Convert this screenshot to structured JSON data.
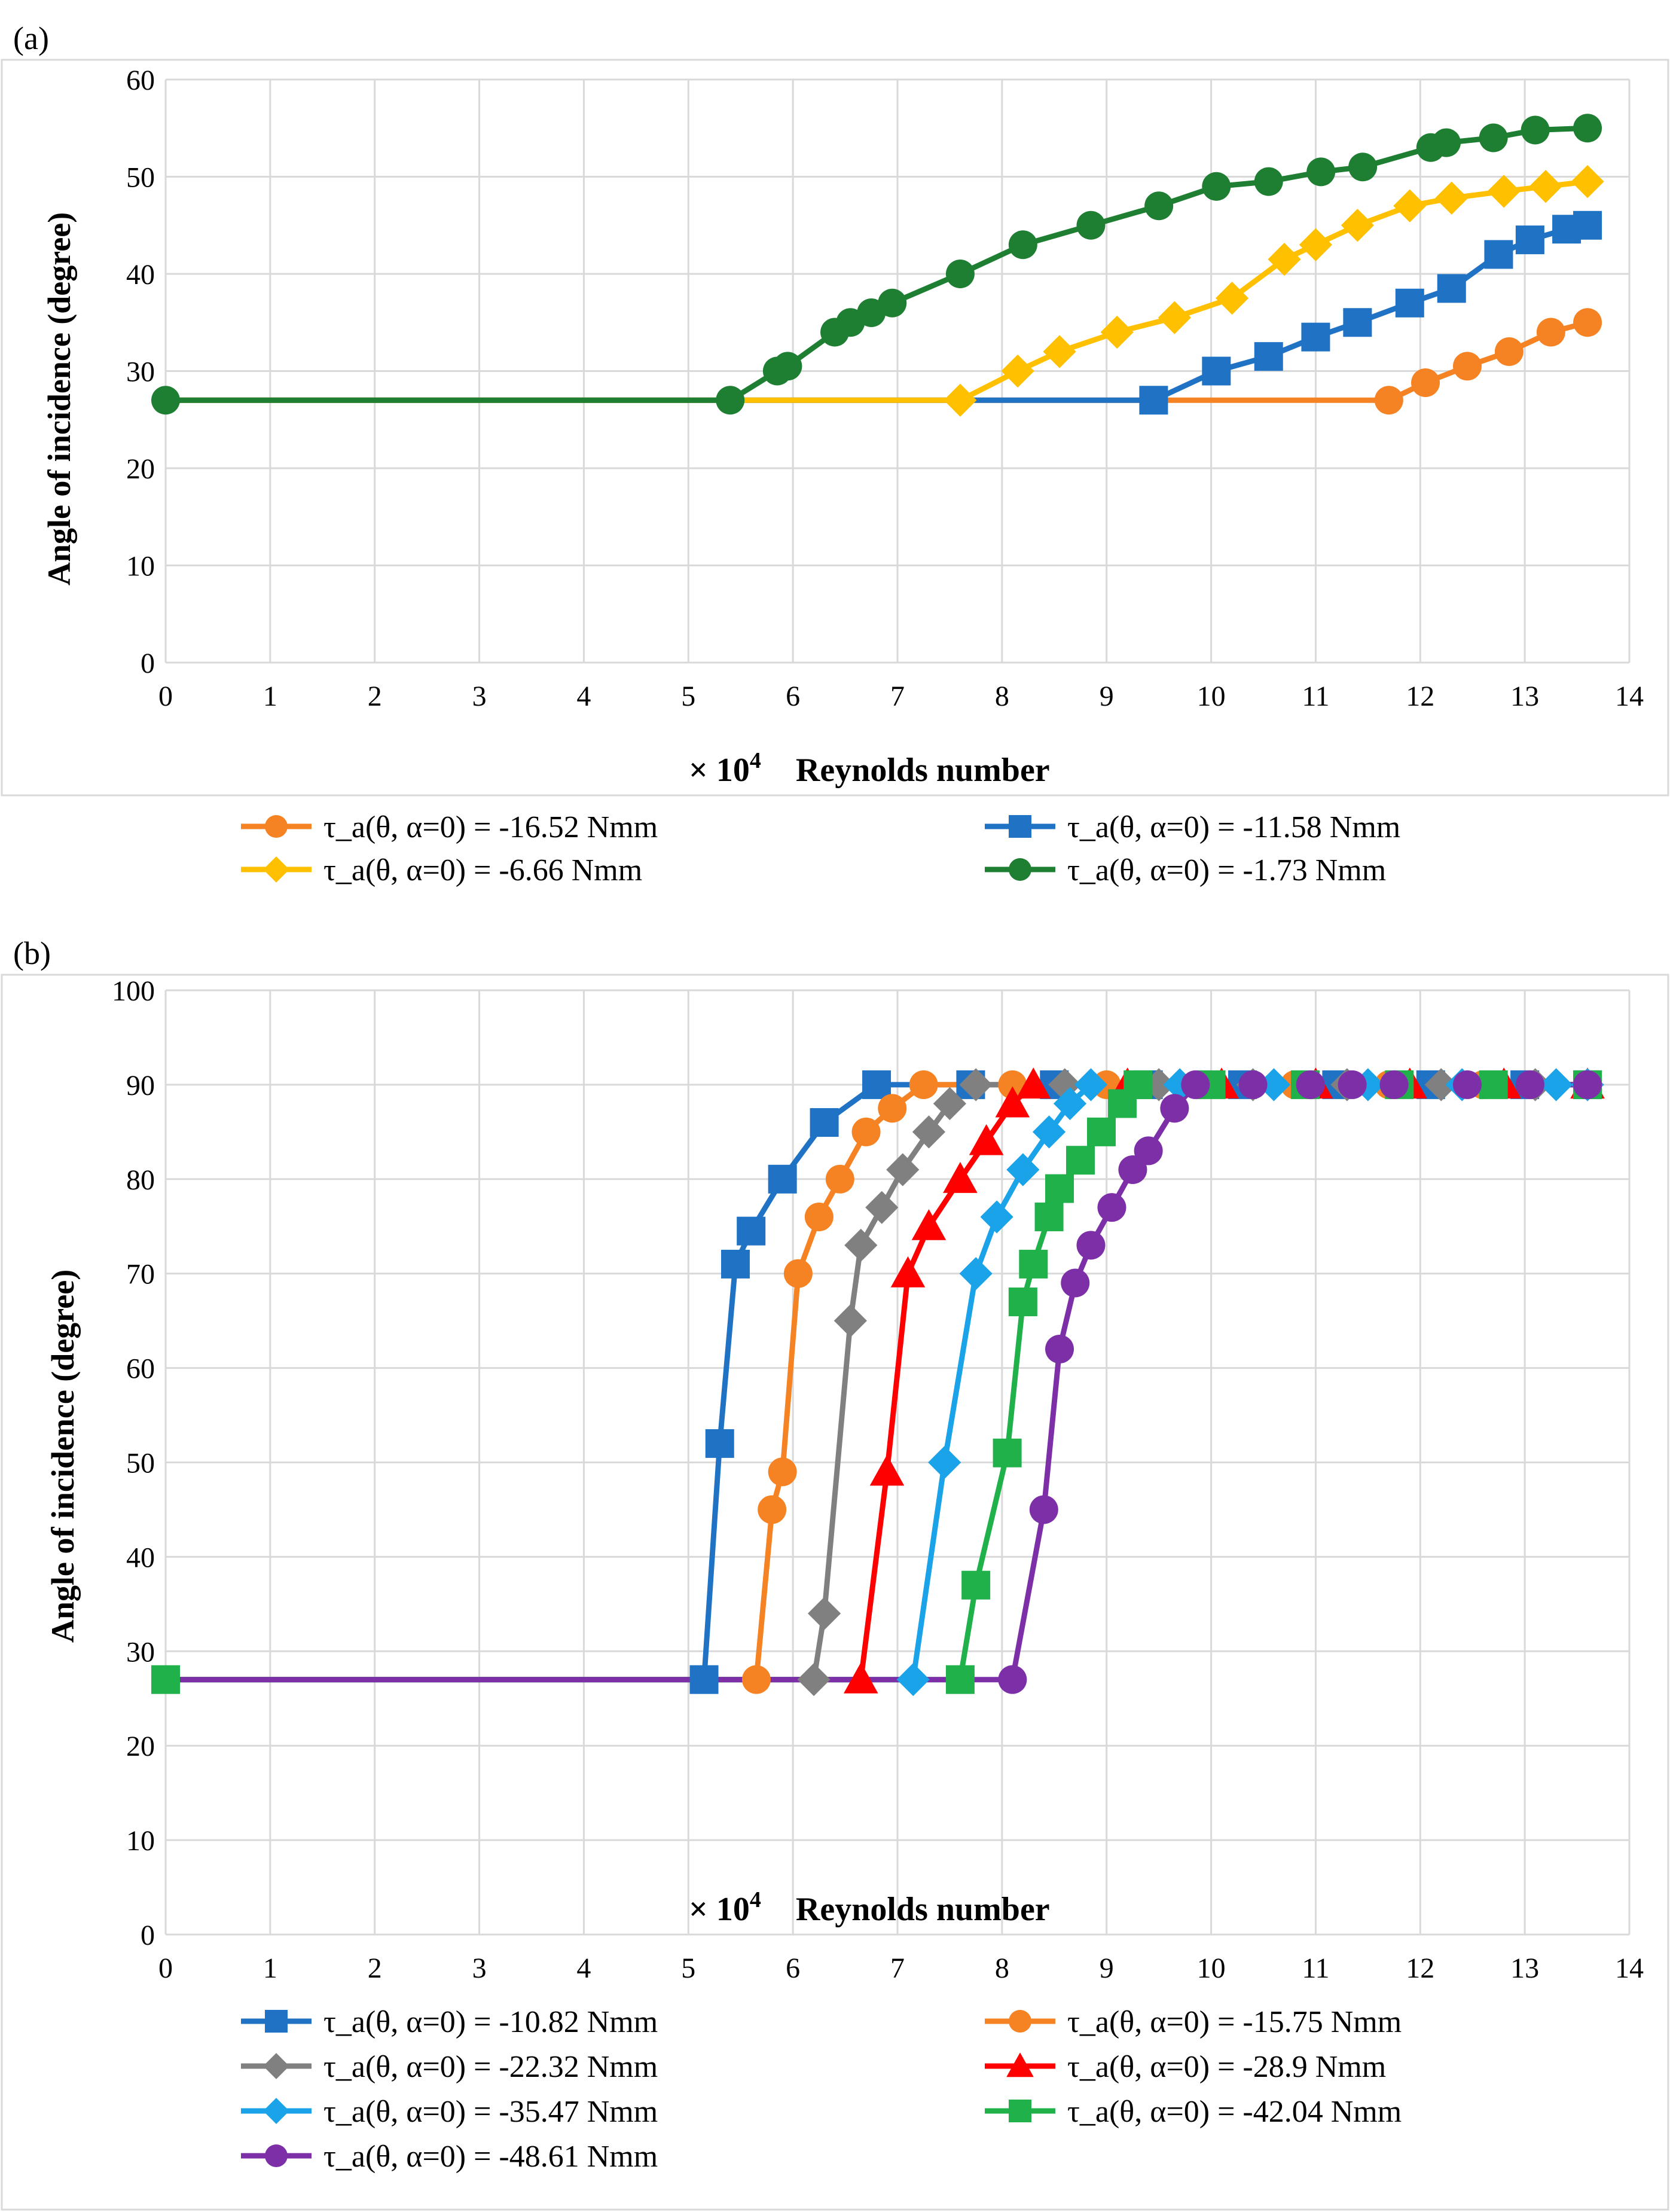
{
  "chart_data": [
    {
      "panel_label": "(a)",
      "type": "line",
      "title": "",
      "xlabel_prefix": "× 10",
      "xlabel_exponent": "4",
      "xlabel": "Reynolds number",
      "ylabel": "Angle of incidence (degree)",
      "xlim": [
        0,
        14
      ],
      "ylim": [
        0,
        60
      ],
      "xticks": [
        "0",
        "1",
        "2",
        "3",
        "4",
        "5",
        "6",
        "7",
        "8",
        "9",
        "10",
        "11",
        "12",
        "13",
        "14"
      ],
      "yticks": [
        "0",
        "10",
        "20",
        "30",
        "40",
        "50",
        "60"
      ],
      "grid": true,
      "legend_position": "bottom",
      "series": [
        {
          "name": "τ_a(θ, α=0) = -16.52 Nmm",
          "color": "#F58223",
          "marker": "circle",
          "points": [
            [
              0,
              27
            ],
            [
              11.7,
              27
            ],
            [
              12.05,
              28.8
            ],
            [
              12.45,
              30.5
            ],
            [
              12.85,
              32
            ],
            [
              13.25,
              34
            ],
            [
              13.6,
              35
            ]
          ],
          "marker_start": 1
        },
        {
          "name": "τ_a(θ, α=0) = -11.58 Nmm",
          "color": "#1F72C4",
          "marker": "square",
          "points": [
            [
              0,
              27
            ],
            [
              9.45,
              27
            ],
            [
              10.05,
              30
            ],
            [
              10.55,
              31.5
            ],
            [
              11.0,
              33.5
            ],
            [
              11.4,
              35
            ],
            [
              11.9,
              37
            ],
            [
              12.3,
              38.5
            ],
            [
              12.75,
              42
            ],
            [
              13.05,
              43.5
            ],
            [
              13.4,
              44.6
            ],
            [
              13.6,
              45
            ]
          ],
          "marker_start": 1
        },
        {
          "name": "τ_a(θ, α=0) = -6.66 Nmm",
          "color": "#FFC000",
          "marker": "diamond",
          "points": [
            [
              0,
              27
            ],
            [
              7.6,
              27
            ],
            [
              8.15,
              30
            ],
            [
              8.55,
              32
            ],
            [
              9.1,
              34
            ],
            [
              9.65,
              35.5
            ],
            [
              10.2,
              37.5
            ],
            [
              10.7,
              41.5
            ],
            [
              11.0,
              43
            ],
            [
              11.4,
              45
            ],
            [
              11.9,
              47
            ],
            [
              12.3,
              47.8
            ],
            [
              12.8,
              48.5
            ],
            [
              13.2,
              49
            ],
            [
              13.6,
              49.5
            ]
          ],
          "marker_start": 1
        },
        {
          "name": "τ_a(θ, α=0) = -1.73 Nmm",
          "color": "#1E7F32",
          "marker": "circle",
          "points": [
            [
              0,
              27
            ],
            [
              5.4,
              27
            ],
            [
              5.85,
              30
            ],
            [
              5.95,
              30.5
            ],
            [
              6.4,
              34
            ],
            [
              6.55,
              35
            ],
            [
              6.75,
              36
            ],
            [
              6.95,
              37
            ],
            [
              7.6,
              40
            ],
            [
              8.2,
              43
            ],
            [
              8.85,
              45
            ],
            [
              9.5,
              47
            ],
            [
              10.05,
              49
            ],
            [
              10.55,
              49.5
            ],
            [
              11.05,
              50.5
            ],
            [
              11.45,
              51
            ],
            [
              12.1,
              53
            ],
            [
              12.25,
              53.5
            ],
            [
              12.7,
              54
            ],
            [
              13.1,
              54.8
            ],
            [
              13.6,
              55
            ]
          ],
          "marker_start": 0
        }
      ]
    },
    {
      "panel_label": "(b)",
      "type": "line",
      "title": "",
      "xlabel_prefix": "× 10",
      "xlabel_exponent": "4",
      "xlabel": "Reynolds number",
      "ylabel": "Angle of incidence (degree)",
      "xlim": [
        0,
        14
      ],
      "ylim": [
        0,
        100
      ],
      "xticks": [
        "0",
        "1",
        "2",
        "3",
        "4",
        "5",
        "6",
        "7",
        "8",
        "9",
        "10",
        "11",
        "12",
        "13",
        "14"
      ],
      "yticks": [
        "0",
        "10",
        "20",
        "30",
        "40",
        "50",
        "60",
        "70",
        "80",
        "90",
        "100"
      ],
      "grid": true,
      "legend_position": "bottom",
      "series": [
        {
          "name": "τ_a(θ, α=0) = -10.82 Nmm",
          "color": "#1F72C4",
          "marker": "square",
          "points": [
            [
              0,
              27
            ],
            [
              5.15,
              27
            ],
            [
              5.3,
              52
            ],
            [
              5.45,
              71
            ],
            [
              5.6,
              74.5
            ],
            [
              5.9,
              80
            ],
            [
              6.3,
              86
            ],
            [
              6.8,
              90
            ],
            [
              7.7,
              90
            ],
            [
              8.5,
              90
            ],
            [
              9.4,
              90
            ],
            [
              10.3,
              90
            ],
            [
              11.2,
              90
            ],
            [
              12.1,
              90
            ],
            [
              13.0,
              90
            ],
            [
              13.6,
              90
            ]
          ],
          "marker_start": 1
        },
        {
          "name": "τ_a(θ, α=0) = -15.75 Nmm",
          "color": "#F58223",
          "marker": "circle",
          "points": [
            [
              0,
              27
            ],
            [
              5.65,
              27
            ],
            [
              5.8,
              45
            ],
            [
              5.9,
              49
            ],
            [
              6.05,
              70
            ],
            [
              6.25,
              76
            ],
            [
              6.45,
              80
            ],
            [
              6.7,
              85
            ],
            [
              6.95,
              87.5
            ],
            [
              7.25,
              90
            ],
            [
              8.1,
              90
            ],
            [
              9.0,
              90
            ],
            [
              9.9,
              90
            ],
            [
              10.8,
              90
            ],
            [
              11.7,
              90
            ],
            [
              12.6,
              90
            ],
            [
              13.6,
              90
            ]
          ],
          "marker_start": 1
        },
        {
          "name": "τ_a(θ, α=0) = -22.32 Nmm",
          "color": "#808080",
          "marker": "diamond",
          "points": [
            [
              0,
              27
            ],
            [
              6.2,
              27
            ],
            [
              6.3,
              34
            ],
            [
              6.55,
              65
            ],
            [
              6.65,
              73
            ],
            [
              6.85,
              77
            ],
            [
              7.05,
              81
            ],
            [
              7.3,
              85
            ],
            [
              7.5,
              88
            ],
            [
              7.75,
              90
            ],
            [
              8.6,
              90
            ],
            [
              9.5,
              90
            ],
            [
              10.4,
              90
            ],
            [
              11.3,
              90
            ],
            [
              12.2,
              90
            ],
            [
              13.1,
              90
            ],
            [
              13.6,
              90
            ]
          ],
          "marker_start": 1
        },
        {
          "name": "τ_a(θ, α=0) = -28.9 Nmm",
          "color": "#FF0000",
          "marker": "triangle",
          "points": [
            [
              0,
              27
            ],
            [
              6.65,
              27
            ],
            [
              6.9,
              49
            ],
            [
              7.1,
              70
            ],
            [
              7.3,
              75
            ],
            [
              7.6,
              80
            ],
            [
              7.85,
              84
            ],
            [
              8.1,
              88
            ],
            [
              8.3,
              90
            ],
            [
              9.2,
              90
            ],
            [
              10.1,
              90
            ],
            [
              11.0,
              90
            ],
            [
              11.9,
              90
            ],
            [
              12.8,
              90
            ],
            [
              13.6,
              90
            ]
          ],
          "marker_start": 1
        },
        {
          "name": "τ_a(θ, α=0) = -35.47 Nmm",
          "color": "#1AA3E8",
          "marker": "diamond",
          "points": [
            [
              0,
              27
            ],
            [
              7.15,
              27
            ],
            [
              7.45,
              50
            ],
            [
              7.75,
              70
            ],
            [
              7.95,
              76
            ],
            [
              8.2,
              81
            ],
            [
              8.45,
              85
            ],
            [
              8.65,
              88
            ],
            [
              8.85,
              90
            ],
            [
              9.7,
              90
            ],
            [
              10.6,
              90
            ],
            [
              11.5,
              90
            ],
            [
              12.4,
              90
            ],
            [
              13.3,
              90
            ],
            [
              13.6,
              90
            ]
          ],
          "marker_start": 1
        },
        {
          "name": "τ_a(θ, α=0) = -42.04 Nmm",
          "color": "#21B14A",
          "marker": "square",
          "points": [
            [
              0,
              27
            ],
            [
              7.6,
              27
            ],
            [
              7.75,
              37
            ],
            [
              8.05,
              51
            ],
            [
              8.2,
              67
            ],
            [
              8.3,
              71
            ],
            [
              8.45,
              76
            ],
            [
              8.55,
              79
            ],
            [
              8.75,
              82
            ],
            [
              8.95,
              85
            ],
            [
              9.15,
              88
            ],
            [
              9.3,
              90
            ],
            [
              10.0,
              90
            ],
            [
              10.9,
              90
            ],
            [
              11.8,
              90
            ],
            [
              12.7,
              90
            ],
            [
              13.6,
              90
            ]
          ],
          "marker_start": 0
        },
        {
          "name": "τ_a(θ, α=0) = -48.61 Nmm",
          "color": "#7D2FA8",
          "marker": "circle",
          "points": [
            [
              0,
              27
            ],
            [
              8.1,
              27
            ],
            [
              8.4,
              45
            ],
            [
              8.55,
              62
            ],
            [
              8.7,
              69
            ],
            [
              8.85,
              73
            ],
            [
              9.05,
              77
            ],
            [
              9.25,
              81
            ],
            [
              9.4,
              83
            ],
            [
              9.65,
              87.5
            ],
            [
              9.85,
              90
            ],
            [
              10.4,
              90
            ],
            [
              10.95,
              90
            ],
            [
              11.35,
              90
            ],
            [
              11.75,
              90
            ],
            [
              12.45,
              90
            ],
            [
              13.05,
              90
            ],
            [
              13.6,
              90
            ]
          ],
          "marker_start": 1
        }
      ]
    }
  ]
}
